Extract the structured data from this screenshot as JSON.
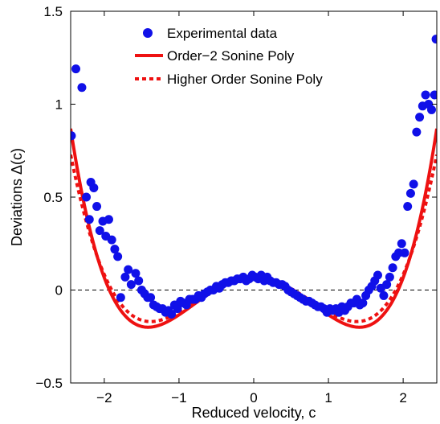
{
  "chart_data": {
    "type": "scatter",
    "title": "",
    "xlabel": "Reduced velocity, c",
    "ylabel": "Deviations Δ(c)",
    "xlim": [
      -2.45,
      2.45
    ],
    "ylim": [
      -0.5,
      1.5
    ],
    "xticks": [
      -2,
      -1,
      0,
      1,
      2
    ],
    "xtick_labels": [
      "−2",
      "−1",
      "0",
      "1",
      "2"
    ],
    "yticks": [
      -0.5,
      0,
      0.5,
      1,
      1.5
    ],
    "ytick_labels": [
      "−0.5",
      "0",
      "0.5",
      "1",
      "1.5"
    ],
    "grid": false,
    "zero_reference_line": {
      "y": 0,
      "style": "dashed",
      "color": "#000000"
    },
    "legend_position": "top-center",
    "colors": {
      "experimental": "#1010e8",
      "sonine": "#ee1111"
    },
    "series": [
      {
        "name": "Experimental data",
        "kind": "scatter",
        "x": [
          -2.44,
          -2.38,
          -2.3,
          -2.24,
          -2.2,
          -2.18,
          -2.14,
          -2.1,
          -2.06,
          -2.02,
          -1.98,
          -1.94,
          -1.9,
          -1.86,
          -1.82,
          -1.78,
          -1.72,
          -1.68,
          -1.64,
          -1.58,
          -1.54,
          -1.5,
          -1.46,
          -1.42,
          -1.38,
          -1.34,
          -1.3,
          -1.26,
          -1.22,
          -1.18,
          -1.14,
          -1.1,
          -1.06,
          -1.02,
          -0.98,
          -0.94,
          -0.9,
          -0.86,
          -0.82,
          -0.78,
          -0.74,
          -0.7,
          -0.66,
          -0.62,
          -0.58,
          -0.54,
          -0.5,
          -0.46,
          -0.42,
          -0.38,
          -0.34,
          -0.3,
          -0.26,
          -0.22,
          -0.18,
          -0.14,
          -0.1,
          -0.06,
          -0.02,
          0.02,
          0.06,
          0.1,
          0.14,
          0.18,
          0.22,
          0.26,
          0.3,
          0.34,
          0.38,
          0.42,
          0.46,
          0.5,
          0.54,
          0.58,
          0.62,
          0.66,
          0.7,
          0.74,
          0.78,
          0.82,
          0.86,
          0.9,
          0.94,
          0.98,
          1.02,
          1.06,
          1.1,
          1.14,
          1.18,
          1.22,
          1.26,
          1.3,
          1.34,
          1.38,
          1.42,
          1.46,
          1.5,
          1.54,
          1.58,
          1.62,
          1.66,
          1.7,
          1.74,
          1.78,
          1.82,
          1.86,
          1.9,
          1.94,
          1.98,
          2.02,
          2.06,
          2.1,
          2.14,
          2.18,
          2.22,
          2.26,
          2.3,
          2.34,
          2.38,
          2.42,
          2.44
        ],
        "y": [
          0.83,
          1.19,
          1.09,
          0.5,
          0.38,
          0.58,
          0.55,
          0.45,
          0.32,
          0.37,
          0.29,
          0.38,
          0.27,
          0.22,
          0.18,
          -0.04,
          0.07,
          0.11,
          0.03,
          0.09,
          0.05,
          0.0,
          -0.02,
          -0.04,
          -0.04,
          -0.08,
          -0.09,
          -0.1,
          -0.1,
          -0.12,
          -0.11,
          -0.13,
          -0.08,
          -0.1,
          -0.06,
          -0.07,
          -0.08,
          -0.05,
          -0.05,
          -0.05,
          -0.03,
          -0.04,
          -0.02,
          -0.01,
          0.0,
          0.0,
          0.02,
          0.01,
          0.03,
          0.04,
          0.04,
          0.05,
          0.05,
          0.06,
          0.06,
          0.07,
          0.05,
          0.06,
          0.08,
          0.07,
          0.06,
          0.08,
          0.05,
          0.07,
          0.05,
          0.04,
          0.04,
          0.03,
          0.03,
          0.02,
          0.0,
          -0.01,
          -0.02,
          -0.03,
          -0.04,
          -0.05,
          -0.06,
          -0.06,
          -0.07,
          -0.08,
          -0.09,
          -0.09,
          -0.1,
          -0.12,
          -0.1,
          -0.11,
          -0.1,
          -0.12,
          -0.09,
          -0.11,
          -0.09,
          -0.07,
          -0.07,
          -0.05,
          -0.08,
          -0.07,
          -0.03,
          0.0,
          0.02,
          0.05,
          0.08,
          0.01,
          -0.03,
          0.03,
          0.07,
          0.12,
          0.18,
          0.2,
          0.25,
          0.2,
          0.45,
          0.52,
          0.57,
          0.85,
          0.93,
          0.99,
          1.05,
          1.0,
          0.97,
          1.05,
          1.35
        ]
      },
      {
        "name": "Order−2 Sonine Poly",
        "kind": "line",
        "style": "solid",
        "formula_coefficients": {
          "a2": 0.0667,
          "note": "y = a2*(c^4 - 4c^2 + 1)"
        }
      },
      {
        "name": "Higher Order Sonine Poly",
        "kind": "line",
        "style": "dotted",
        "formula_coefficients": {
          "a2": 0.055,
          "a3": 0.006
        }
      }
    ]
  }
}
